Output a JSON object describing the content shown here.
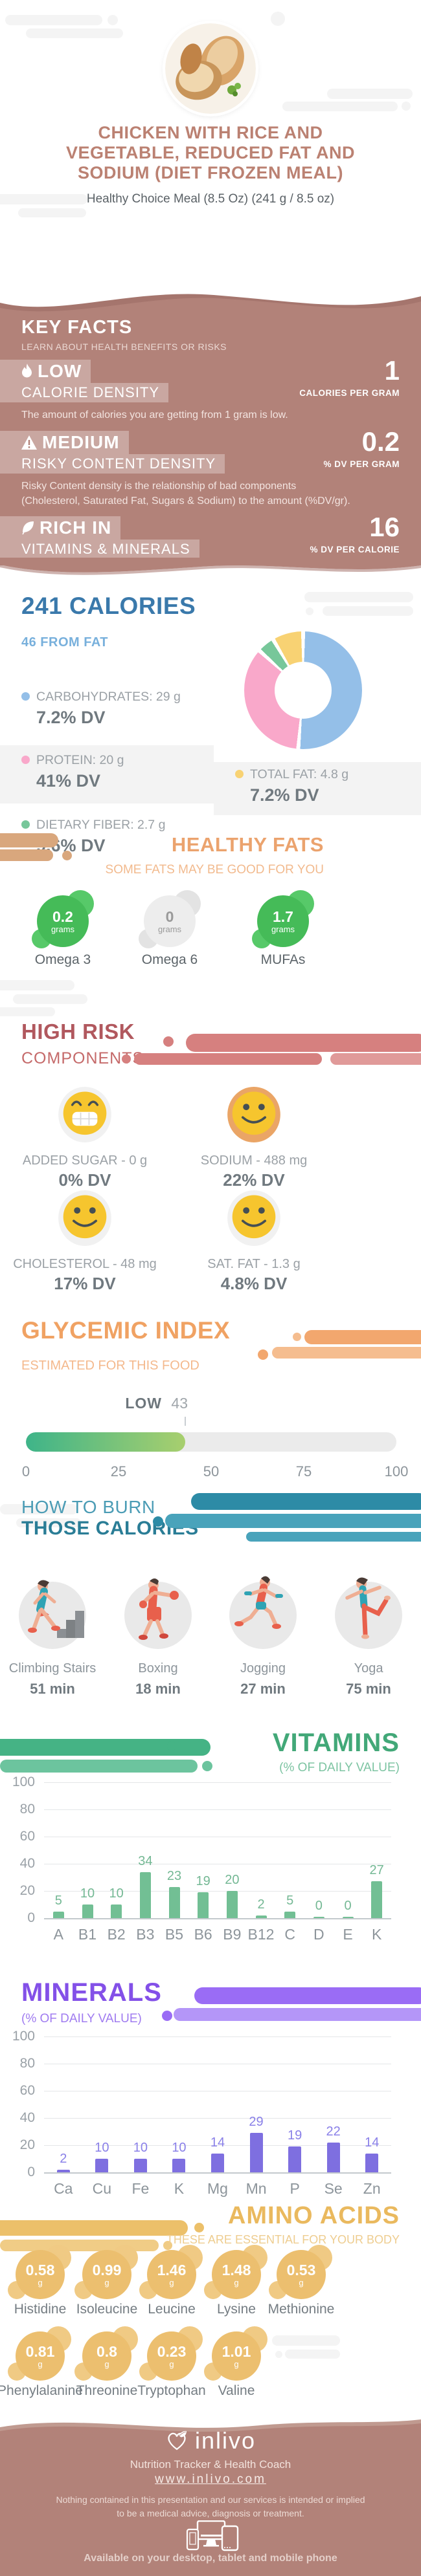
{
  "hero": {
    "title_line1": "CHICKEN WITH RICE AND",
    "title_line2": "VEGETABLE, REDUCED FAT AND",
    "title_line3": "SODIUM (DIET FROZEN MEAL)",
    "subtitle": "Healthy Choice Meal (8.5 Oz) (241 g / 8.5 oz)"
  },
  "key_facts": {
    "title": "KEY FACTS",
    "subtitle": "LEARN ABOUT HEALTH BENEFITS OR RISKS",
    "items": [
      {
        "icon": "flame-icon",
        "level": "LOW",
        "name": "CALORIE DENSITY",
        "value": "1",
        "unit": "CALORIES PER GRAM",
        "description": "The amount of calories you are getting from 1 gram is low."
      },
      {
        "icon": "warning-icon",
        "level": "MEDIUM",
        "name": "RISKY CONTENT DENSITY",
        "value": "0.2",
        "unit": "% DV PER GRAM",
        "description_line1": "Risky Content density is the relationship of bad components",
        "description_line2": "(Cholesterol, Saturated Fat, Sugars & Sodium) to the amount (%DV/gr)."
      },
      {
        "icon": "leaf-icon",
        "level": "RICH IN",
        "name": "VITAMINS & MINERALS",
        "value": "16",
        "unit": "% DV PER CALORIE"
      }
    ]
  },
  "calories": {
    "title": "241 CALORIES",
    "subtitle": "46 FROM FAT",
    "legend": [
      {
        "label": "CARBOHYDRATES: 29 g",
        "dv": "7.2% DV"
      },
      {
        "label": "PROTEIN: 20 g",
        "dv": "41% DV"
      },
      {
        "label": "DIETARY FIBER: 2.7 g",
        "dv": "9.6% DV"
      },
      {
        "label": "TOTAL FAT: 4.8 g",
        "dv": "7.2% DV"
      }
    ]
  },
  "chart_data": [
    {
      "type": "pie",
      "donut": true,
      "title": "241 calories macronutrient breakdown",
      "labels": [
        "Carbohydrates",
        "Protein",
        "Dietary Fiber",
        "Total Fat"
      ],
      "values": [
        29,
        20,
        2.7,
        4.8
      ],
      "unit": "g",
      "colors": [
        "#94bfe8",
        "#f9a8ca",
        "#77c79a",
        "#f8d273"
      ]
    },
    {
      "type": "bar",
      "title": "VITAMINS",
      "subtitle": "(% OF DAILY VALUE)",
      "categories": [
        "A",
        "B1",
        "B2",
        "B3",
        "B5",
        "B6",
        "B9",
        "B12",
        "C",
        "D",
        "E",
        "K"
      ],
      "values": [
        5,
        10,
        10,
        34,
        23,
        19,
        20,
        2,
        5,
        0,
        0,
        27
      ],
      "ylim": [
        0,
        100
      ],
      "yticks": [
        0,
        20,
        40,
        60,
        80,
        100
      ],
      "grid": true,
      "bar_color": "#72bf94",
      "label_color": "#74b894"
    },
    {
      "type": "bar",
      "title": "MINERALS",
      "subtitle": "(% OF DAILY VALUE)",
      "categories": [
        "Ca",
        "Cu",
        "Fe",
        "K",
        "Mg",
        "Mn",
        "P",
        "Se",
        "Zn"
      ],
      "values": [
        2,
        10,
        10,
        10,
        14,
        29,
        19,
        22,
        14
      ],
      "ylim": [
        0,
        100
      ],
      "yticks": [
        0,
        20,
        40,
        60,
        80,
        100
      ],
      "grid": true,
      "bar_color": "#7e6fe0",
      "label_color": "#8a80e8"
    },
    {
      "type": "gauge",
      "title": "GLYCEMIC INDEX",
      "level": "LOW",
      "value": 43,
      "range": [
        0,
        100
      ],
      "ticks": [
        0,
        25,
        50,
        75,
        100
      ],
      "fill_colors": [
        "#3eb489",
        "#a8cf6e"
      ],
      "track_color": "#ebebeb"
    }
  ],
  "healthy_fats": {
    "title": "HEALTHY FATS",
    "subtitle": "SOME FATS MAY BE GOOD FOR YOU",
    "items": [
      {
        "value": "0.2",
        "unit": "grams",
        "label": "Omega 3",
        "filled": true
      },
      {
        "value": "0",
        "unit": "grams",
        "label": "Omega 6",
        "filled": false
      },
      {
        "value": "1.7",
        "unit": "grams",
        "label": "MUFAs",
        "filled": true
      }
    ]
  },
  "high_risk": {
    "title": "HIGH RISK",
    "subtitle": "COMPONENTS",
    "items": [
      {
        "label": "ADDED SUGAR - 0 g",
        "dv": "0% DV",
        "face": "grin",
        "highlight": false
      },
      {
        "label": "SODIUM - 488 mg",
        "dv": "22% DV",
        "face": "smile",
        "highlight": true
      },
      {
        "label": "CHOLESTEROL - 48 mg",
        "dv": "17% DV",
        "face": "smile",
        "highlight": false
      },
      {
        "label": "SAT. FAT - 1.3 g",
        "dv": "4.8% DV",
        "face": "smile",
        "highlight": false
      }
    ]
  },
  "glycemic": {
    "title": "GLYCEMIC INDEX",
    "subtitle": "ESTIMATED FOR THIS FOOD",
    "level": "LOW",
    "value": "43",
    "scale": [
      "0",
      "25",
      "50",
      "75",
      "100"
    ]
  },
  "burn": {
    "title_line1": "HOW TO BURN",
    "title_line2": "THOSE CALORIES",
    "activities": [
      {
        "label": "Climbing Stairs",
        "time": "51 min",
        "icon": "climbing-stairs-illustration"
      },
      {
        "label": "Boxing",
        "time": "18 min",
        "icon": "boxing-illustration"
      },
      {
        "label": "Jogging",
        "time": "27 min",
        "icon": "jogging-illustration"
      },
      {
        "label": "Yoga",
        "time": "75 min",
        "icon": "yoga-illustration"
      }
    ]
  },
  "vitamins": {
    "title": "VITAMINS",
    "subtitle": "(% OF DAILY VALUE)"
  },
  "minerals": {
    "title": "MINERALS",
    "subtitle": "(% OF DAILY VALUE)"
  },
  "amino_acids": {
    "title": "AMINO ACIDS",
    "subtitle": "THESE ARE ESSENTIAL FOR YOUR BODY",
    "items": [
      {
        "value": "0.58",
        "unit": "g",
        "label": "Histidine"
      },
      {
        "value": "0.99",
        "unit": "g",
        "label": "Isoleucine"
      },
      {
        "value": "1.46",
        "unit": "g",
        "label": "Leucine"
      },
      {
        "value": "1.48",
        "unit": "g",
        "label": "Lysine"
      },
      {
        "value": "0.53",
        "unit": "g",
        "label": "Methionine"
      },
      {
        "value": "0.81",
        "unit": "g",
        "label": "Phenylalanine"
      },
      {
        "value": "0.8",
        "unit": "g",
        "label": "Threonine"
      },
      {
        "value": "0.23",
        "unit": "g",
        "label": "Tryptophan"
      },
      {
        "value": "1.01",
        "unit": "g",
        "label": "Valine"
      }
    ]
  },
  "footer": {
    "brand": "inlivo",
    "tagline": "Nutrition Tracker & Health Coach",
    "url": "www.inlivo.com",
    "disclaimer_line1": "Nothing contained in this presentation and our services is intended or implied",
    "disclaimer_line2": "to be a medical advice, diagnosis or treatment.",
    "availability": "Available on your desktop, tablet and mobile phone"
  },
  "colors": {
    "mauve": "#b28279",
    "mauve_dark": "#a5756d",
    "mauve_light": "#c09a90",
    "hero_title": "#bb8172",
    "blue_title": "#3a79ab",
    "blue_sub": "#78b0dc",
    "orange_title": "#eba36e",
    "red_title": "#b1585e",
    "red_blob": "#d6807f",
    "teal_light": "#4b9cb5",
    "teal_bold": "#2a7d96",
    "teal_blob": "#2d8ba6",
    "green_title": "#42a878",
    "green_blob": "#45b385",
    "purple_title": "#8350e8",
    "purple_blob": "#9a6cf5",
    "gold_title": "#eab95e",
    "gold_blob": "#ecbf6f",
    "face_yellow": "#f6c52e",
    "sodium_ring": "#eaa566",
    "healthy_green": "#45bb58"
  }
}
